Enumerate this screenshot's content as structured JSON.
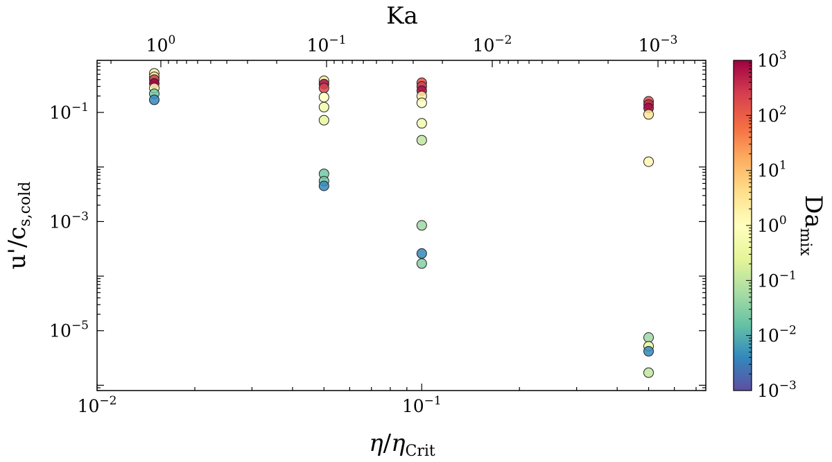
{
  "chart_data": {
    "type": "scatter",
    "title": "",
    "xlabel": "η/η_Crit",
    "ylabel": "u'/c_s,cold",
    "top_xlabel": "Ka",
    "colorbar_label": "Da_mix",
    "xscale": "log",
    "yscale": "log",
    "xlim": [
      0.01,
      0.75
    ],
    "ylim": [
      8e-07,
      0.9
    ],
    "colorbar_range": [
      0.001,
      1000
    ],
    "colormap": "Spectral_r",
    "colormap_stops": [
      "#5e4fa2",
      "#3288bd",
      "#66c2a5",
      "#abdda4",
      "#e6f598",
      "#ffffbf",
      "#fee08b",
      "#fdae61",
      "#f46d43",
      "#d53e4f",
      "#9e0142"
    ],
    "x_ticks": [
      {
        "value": 0.01,
        "base": "10",
        "exp": "−2"
      },
      {
        "value": 0.1,
        "base": "10",
        "exp": "−1"
      }
    ],
    "y_ticks": [
      {
        "value": 0.1,
        "base": "10",
        "exp": "−1"
      },
      {
        "value": 0.001,
        "base": "10",
        "exp": "−3"
      },
      {
        "value": 1e-05,
        "base": "10",
        "exp": "−5"
      }
    ],
    "top_ticks": [
      {
        "ka": 1,
        "base": "10",
        "exp": "0"
      },
      {
        "ka": 0.1,
        "base": "10",
        "exp": "−1"
      },
      {
        "ka": 0.01,
        "base": "10",
        "exp": "−2"
      },
      {
        "ka": 0.001,
        "base": "10",
        "exp": "−3"
      }
    ],
    "colorbar_ticks": [
      {
        "value": 1000,
        "base": "10",
        "exp": "3"
      },
      {
        "value": 100,
        "base": "10",
        "exp": "2"
      },
      {
        "value": 10,
        "base": "10",
        "exp": "1"
      },
      {
        "value": 1,
        "base": "10",
        "exp": "0"
      },
      {
        "value": 0.1,
        "base": "10",
        "exp": "−1"
      },
      {
        "value": 0.01,
        "base": "10",
        "exp": "−2"
      },
      {
        "value": 0.001,
        "base": "10",
        "exp": "−3"
      }
    ],
    "points": [
      {
        "x": 0.015,
        "y": 0.52,
        "da": 2
      },
      {
        "x": 0.015,
        "y": 0.45,
        "da": 3
      },
      {
        "x": 0.015,
        "y": 0.4,
        "da": 300
      },
      {
        "x": 0.015,
        "y": 0.34,
        "da": 1000
      },
      {
        "x": 0.015,
        "y": 0.28,
        "da": 1.5
      },
      {
        "x": 0.015,
        "y": 0.22,
        "da": 0.02
      },
      {
        "x": 0.015,
        "y": 0.17,
        "da": 0.004
      },
      {
        "x": 0.05,
        "y": 0.38,
        "da": 2
      },
      {
        "x": 0.05,
        "y": 0.33,
        "da": 800
      },
      {
        "x": 0.05,
        "y": 0.28,
        "da": 200
      },
      {
        "x": 0.05,
        "y": 0.19,
        "da": 1
      },
      {
        "x": 0.05,
        "y": 0.125,
        "da": 0.5
      },
      {
        "x": 0.05,
        "y": 0.072,
        "da": 0.3
      },
      {
        "x": 0.05,
        "y": 0.0075,
        "da": 0.02
      },
      {
        "x": 0.05,
        "y": 0.0055,
        "da": 0.02
      },
      {
        "x": 0.05,
        "y": 0.0045,
        "da": 0.004
      },
      {
        "x": 0.1,
        "y": 0.35,
        "da": 150
      },
      {
        "x": 0.1,
        "y": 0.3,
        "da": 250
      },
      {
        "x": 0.1,
        "y": 0.25,
        "da": 700
      },
      {
        "x": 0.1,
        "y": 0.2,
        "da": 2
      },
      {
        "x": 0.1,
        "y": 0.15,
        "da": 1
      },
      {
        "x": 0.1,
        "y": 0.063,
        "da": 0.5
      },
      {
        "x": 0.1,
        "y": 0.031,
        "da": 0.1
      },
      {
        "x": 0.1,
        "y": 0.00085,
        "da": 0.05
      },
      {
        "x": 0.1,
        "y": 0.00026,
        "da": 0.004
      },
      {
        "x": 0.1,
        "y": 0.00017,
        "da": 0.03
      },
      {
        "x": 0.5,
        "y": 0.16,
        "da": 150
      },
      {
        "x": 0.5,
        "y": 0.14,
        "da": 400
      },
      {
        "x": 0.5,
        "y": 0.12,
        "da": 800
      },
      {
        "x": 0.5,
        "y": 0.092,
        "da": 3
      },
      {
        "x": 0.5,
        "y": 0.0125,
        "da": 1.5
      },
      {
        "x": 0.5,
        "y": 7.5e-06,
        "da": 0.05
      },
      {
        "x": 0.5,
        "y": 5.2e-06,
        "da": 0.3
      },
      {
        "x": 0.5,
        "y": 4.2e-06,
        "da": 0.004
      },
      {
        "x": 0.5,
        "y": 1.7e-06,
        "da": 0.1
      }
    ]
  }
}
